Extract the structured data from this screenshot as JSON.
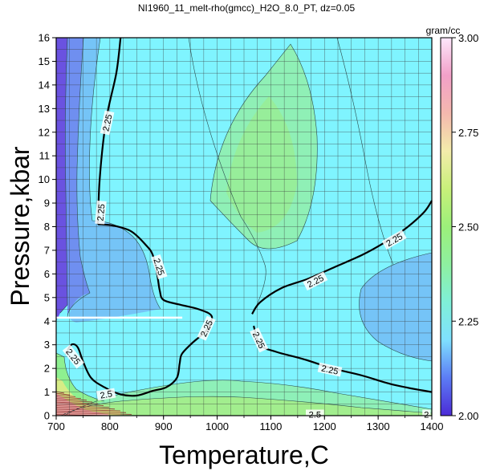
{
  "chart_data": {
    "type": "heatmap",
    "title": "NI1960_11_melt-rho(gmcc)_H2O_8.0_PT, dz=0.05",
    "xlabel": "Temperature,C",
    "ylabel": "Pressure,kbar",
    "xlim": [
      700,
      1400
    ],
    "ylim": [
      0,
      16
    ],
    "x_ticks": [
      "700",
      "800",
      "900",
      "1000",
      "1100",
      "1200",
      "1300",
      "1400"
    ],
    "y_ticks": [
      "0",
      "1",
      "2",
      "3",
      "4",
      "5",
      "6",
      "7",
      "8",
      "9",
      "10",
      "11",
      "12",
      "13",
      "14",
      "15",
      "16"
    ],
    "grid": true,
    "colorbar": {
      "label": "gram/cc",
      "range": [
        2.0,
        3.0
      ],
      "ticks": [
        "2.00",
        "2.25",
        "2.50",
        "2.75",
        "3.00"
      ],
      "stops": [
        {
          "value": 2.0,
          "color": "#4b2bd6"
        },
        {
          "value": 2.1,
          "color": "#5c7cf5"
        },
        {
          "value": 2.2,
          "color": "#7fe0ff"
        },
        {
          "value": 2.3,
          "color": "#7ff0d8"
        },
        {
          "value": 2.4,
          "color": "#8ef0a0"
        },
        {
          "value": 2.5,
          "color": "#9cf07a"
        },
        {
          "value": 2.6,
          "color": "#c8f07a"
        },
        {
          "value": 2.7,
          "color": "#f3ecab"
        },
        {
          "value": 2.8,
          "color": "#f4b8ae"
        },
        {
          "value": 2.9,
          "color": "#f2a0c8"
        },
        {
          "value": 3.0,
          "color": "#fde7fb"
        }
      ]
    },
    "contour_labels": [
      "2.25",
      "2.25",
      "2.25",
      "2.25",
      "2.25",
      "2.25",
      "2.25",
      "2.25",
      "2.25",
      "2.5",
      "2.5",
      "2"
    ],
    "main_contour_level": 2.25,
    "main_contour_branches": [
      {
        "name": "left-upper",
        "points": [
          [
            820,
            16
          ],
          [
            812,
            14.5
          ],
          [
            793,
            12.5
          ],
          [
            781,
            10
          ],
          [
            778,
            8.1
          ]
        ]
      },
      {
        "name": "left-loop",
        "points": [
          [
            778,
            8.1
          ],
          [
            805,
            8.05
          ],
          [
            840,
            7.8
          ],
          [
            868,
            7.2
          ],
          [
            880,
            6.8
          ],
          [
            888,
            6
          ],
          [
            893,
            5.3
          ],
          [
            900,
            4.9
          ],
          [
            930,
            4.7
          ],
          [
            966,
            4.5
          ],
          [
            990,
            4.2
          ],
          [
            980,
            3.6
          ],
          [
            965,
            3.3
          ],
          [
            950,
            3.0
          ],
          [
            934,
            2.6
          ],
          [
            930,
            2.2
          ],
          [
            925,
            1.6
          ],
          [
            905,
            1.2
          ],
          [
            880,
            1.05
          ],
          [
            850,
            0.85
          ],
          [
            820,
            0.9
          ],
          [
            790,
            1.2
          ],
          [
            765,
            1.6
          ],
          [
            750,
            2.3
          ],
          [
            740,
            2.9
          ],
          [
            728,
            3.0
          ],
          [
            718,
            2.6
          ]
        ]
      },
      {
        "name": "right-upper",
        "points": [
          [
            1065,
            4.3
          ],
          [
            1080,
            4.8
          ],
          [
            1120,
            5.4
          ],
          [
            1170,
            5.8
          ],
          [
            1220,
            6.3
          ],
          [
            1270,
            6.8
          ],
          [
            1310,
            7.3
          ],
          [
            1350,
            7.9
          ],
          [
            1385,
            8.6
          ],
          [
            1400,
            9.1
          ]
        ]
      },
      {
        "name": "right-lower",
        "points": [
          [
            1068,
            3.8
          ],
          [
            1080,
            3.0
          ],
          [
            1110,
            2.7
          ],
          [
            1160,
            2.4
          ],
          [
            1215,
            2.0
          ],
          [
            1270,
            1.7
          ],
          [
            1330,
            1.3
          ],
          [
            1400,
            1.0
          ]
        ]
      }
    ],
    "marker": {
      "name": "white-horizontal-line",
      "x": [
        700,
        935
      ],
      "y": [
        4.15,
        4.15
      ]
    }
  }
}
